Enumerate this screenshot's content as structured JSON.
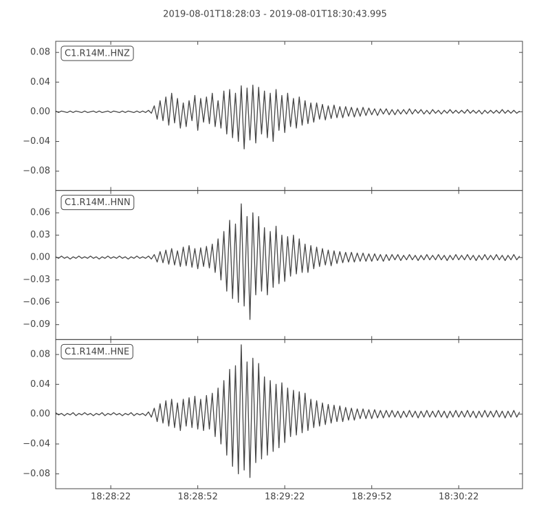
{
  "title": "2019-08-01T18:28:03  -  2019-08-01T18:30:43.995",
  "chart_data": {
    "type": "line",
    "x": [
      0,
      1,
      2,
      3,
      4,
      5,
      6,
      7,
      8,
      9,
      10,
      11,
      12,
      13,
      14,
      15,
      16,
      17,
      18,
      19,
      20,
      21,
      22,
      23,
      24,
      25,
      26,
      27,
      28,
      29,
      30,
      31,
      32,
      33,
      34,
      35,
      36,
      37,
      38,
      39,
      40,
      41,
      42,
      43,
      44,
      45,
      46,
      47,
      48,
      49,
      50,
      51,
      52,
      53,
      54,
      55,
      56,
      57,
      58,
      59,
      60,
      61,
      62,
      63,
      64,
      65,
      66,
      67,
      68,
      69,
      70,
      71,
      72,
      73,
      74,
      75,
      76,
      77,
      78,
      79,
      80,
      81,
      82,
      83,
      84,
      85,
      86,
      87,
      88,
      89,
      90,
      91,
      92,
      93,
      94,
      95,
      96,
      97,
      98,
      99,
      100,
      101,
      102,
      103,
      104,
      105,
      106,
      107,
      108,
      109,
      110,
      111,
      112,
      113,
      114,
      115,
      116,
      117,
      118,
      119,
      120,
      121,
      122,
      123,
      124,
      125,
      126,
      127,
      128,
      129,
      130,
      131,
      132,
      133,
      134,
      135,
      136,
      137,
      138,
      139,
      140,
      141,
      142,
      143,
      144,
      145,
      146,
      147,
      148,
      149,
      150,
      151,
      152,
      153,
      154,
      155,
      156,
      157,
      158,
      159,
      160
    ],
    "xlim": [
      0,
      160.995
    ],
    "xticks": [
      {
        "value": 19,
        "label": "18:28:22"
      },
      {
        "value": 49,
        "label": "18:28:52"
      },
      {
        "value": 79,
        "label": "18:29:22"
      },
      {
        "value": 109,
        "label": "18:29:52"
      },
      {
        "value": 139,
        "label": "18:30:22"
      }
    ],
    "series": [
      {
        "name": "C1.R14M..HNZ",
        "color": "#444444",
        "ylim": [
          -0.106,
          0.095
        ],
        "yticks": [
          0.08,
          0.04,
          {
            "value": 0,
            "label": "0.00"
          },
          {
            "value": -0.04,
            "label": "−0.04"
          },
          {
            "value": -0.08,
            "label": "−0.08"
          }
        ],
        "values": [
          0.001,
          -0.001,
          0.001,
          0,
          -0.001,
          0.001,
          -0.001,
          0.001,
          0,
          -0.001,
          0.001,
          -0.001,
          0,
          0.001,
          -0.001,
          0.001,
          -0.001,
          0,
          0.001,
          -0.001,
          0.001,
          0,
          -0.001,
          0.001,
          -0.001,
          0.001,
          0,
          -0.001,
          0.001,
          -0.001,
          0.001,
          -0.001,
          0.002,
          -0.002,
          0.008,
          -0.01,
          0.015,
          -0.012,
          0.02,
          -0.018,
          0.025,
          -0.015,
          0.018,
          -0.022,
          0.012,
          -0.02,
          0.015,
          -0.012,
          0.022,
          -0.025,
          0.018,
          -0.014,
          0.02,
          -0.016,
          0.025,
          -0.02,
          0.015,
          -0.022,
          0.028,
          -0.03,
          0.03,
          -0.035,
          0.025,
          -0.04,
          0.035,
          -0.05,
          0.032,
          -0.038,
          0.036,
          -0.042,
          0.033,
          -0.03,
          0.028,
          -0.035,
          0.025,
          -0.04,
          0.03,
          -0.025,
          0.022,
          -0.028,
          0.025,
          -0.02,
          0.018,
          -0.022,
          0.02,
          -0.018,
          0.015,
          -0.016,
          0.012,
          -0.014,
          0.012,
          -0.01,
          0.01,
          -0.011,
          0.008,
          -0.009,
          0.009,
          -0.008,
          0.007,
          -0.008,
          0.007,
          -0.006,
          0.006,
          -0.007,
          0.005,
          -0.006,
          0.006,
          -0.005,
          0.005,
          -0.004,
          0.004,
          -0.005,
          0.004,
          -0.003,
          0.004,
          -0.004,
          0.003,
          -0.004,
          0.003,
          -0.003,
          0.003,
          -0.003,
          0.004,
          -0.003,
          0.003,
          -0.002,
          0.003,
          -0.003,
          0.002,
          -0.003,
          0.003,
          -0.002,
          0.002,
          -0.003,
          0.002,
          -0.002,
          0.003,
          -0.002,
          0.002,
          -0.002,
          0.002,
          -0.002,
          0.003,
          -0.002,
          0.002,
          -0.002,
          0.002,
          -0.003,
          0.002,
          -0.002,
          0.002,
          -0.002,
          0.002,
          -0.002,
          0.003,
          -0.002,
          0.002,
          -0.002,
          0.002,
          -0.002,
          0.001
        ]
      },
      {
        "name": "C1.R14M..HNN",
        "color": "#444444",
        "ylim": [
          -0.11,
          0.09
        ],
        "yticks": [
          0.06,
          0.03,
          {
            "value": 0,
            "label": "0.00"
          },
          {
            "value": -0.03,
            "label": "−0.03"
          },
          {
            "value": -0.06,
            "label": "−0.06"
          },
          {
            "value": -0.09,
            "label": "−0.09"
          }
        ],
        "values": [
          0.001,
          -0.001,
          0.002,
          -0.001,
          0.001,
          -0.002,
          0.001,
          -0.001,
          0.002,
          -0.001,
          0.001,
          -0.001,
          0.002,
          -0.001,
          0.001,
          -0.002,
          0.001,
          -0.001,
          0.002,
          -0.001,
          0.001,
          -0.001,
          0.002,
          -0.001,
          0.001,
          -0.002,
          0.001,
          -0.001,
          0.002,
          -0.001,
          0.001,
          -0.001,
          0.002,
          -0.002,
          0.004,
          -0.006,
          0.008,
          -0.007,
          0.01,
          -0.009,
          0.012,
          -0.01,
          0.009,
          -0.012,
          0.014,
          -0.011,
          0.016,
          -0.013,
          0.012,
          -0.015,
          0.013,
          -0.012,
          0.015,
          -0.014,
          0.018,
          -0.02,
          0.025,
          -0.03,
          0.035,
          -0.045,
          0.05,
          -0.055,
          0.045,
          -0.06,
          0.072,
          -0.065,
          0.055,
          -0.083,
          0.06,
          -0.05,
          0.055,
          -0.045,
          0.04,
          -0.05,
          0.035,
          -0.04,
          0.042,
          -0.035,
          0.03,
          -0.032,
          0.028,
          -0.025,
          0.03,
          -0.022,
          0.025,
          -0.02,
          0.018,
          -0.02,
          0.016,
          -0.015,
          0.014,
          -0.012,
          0.012,
          -0.01,
          0.01,
          -0.011,
          0.009,
          -0.008,
          0.008,
          -0.007,
          0.007,
          -0.006,
          0.007,
          -0.006,
          0.006,
          -0.005,
          0.006,
          -0.005,
          0.005,
          -0.005,
          0.005,
          -0.004,
          0.004,
          -0.005,
          0.004,
          -0.004,
          0.004,
          -0.003,
          0.004,
          -0.004,
          0.003,
          -0.003,
          0.004,
          -0.003,
          0.003,
          -0.004,
          0.003,
          -0.003,
          0.004,
          -0.003,
          0.003,
          -0.003,
          0.004,
          -0.003,
          0.003,
          -0.004,
          0.003,
          -0.003,
          0.004,
          -0.003,
          0.003,
          -0.003,
          0.004,
          -0.003,
          0.003,
          -0.004,
          0.003,
          -0.003,
          0.004,
          -0.003,
          0.003,
          -0.003,
          0.004,
          -0.003,
          0.003,
          -0.004,
          0.003,
          -0.003,
          0.004,
          -0.003,
          0.002
        ]
      },
      {
        "name": "C1.R14M..HNE",
        "color": "#444444",
        "ylim": [
          -0.1,
          0.1
        ],
        "yticks": [
          0.08,
          0.04,
          {
            "value": 0,
            "label": "0.00"
          },
          {
            "value": -0.04,
            "label": "−0.04"
          },
          {
            "value": -0.08,
            "label": "−0.08"
          }
        ],
        "values": [
          0.002,
          -0.001,
          0.001,
          -0.002,
          0.001,
          -0.001,
          0.002,
          -0.002,
          0.001,
          -0.001,
          0.002,
          -0.001,
          0.001,
          -0.002,
          0.001,
          -0.001,
          0.002,
          -0.002,
          0.001,
          -0.001,
          0.002,
          -0.001,
          0.001,
          -0.002,
          0.001,
          -0.001,
          0.002,
          -0.002,
          0.001,
          -0.001,
          0.001,
          -0.002,
          0.003,
          -0.004,
          0.008,
          -0.01,
          0.014,
          -0.012,
          0.018,
          -0.016,
          0.02,
          -0.018,
          0.015,
          -0.022,
          0.02,
          -0.016,
          0.022,
          -0.018,
          0.024,
          -0.02,
          0.02,
          -0.022,
          0.025,
          -0.02,
          0.028,
          -0.03,
          0.035,
          -0.04,
          0.045,
          -0.055,
          0.06,
          -0.07,
          0.065,
          -0.08,
          0.093,
          -0.075,
          0.07,
          -0.085,
          0.075,
          -0.065,
          0.068,
          -0.06,
          0.05,
          -0.055,
          0.045,
          -0.05,
          0.04,
          -0.045,
          0.042,
          -0.038,
          0.035,
          -0.03,
          0.032,
          -0.028,
          0.03,
          -0.025,
          0.028,
          -0.022,
          0.02,
          -0.018,
          0.018,
          -0.016,
          0.015,
          -0.014,
          0.013,
          -0.012,
          0.012,
          -0.01,
          0.011,
          -0.01,
          0.009,
          -0.008,
          0.008,
          -0.008,
          0.007,
          -0.006,
          0.007,
          -0.006,
          0.006,
          -0.006,
          0.006,
          -0.005,
          0.005,
          -0.005,
          0.005,
          -0.004,
          0.005,
          -0.004,
          0.004,
          -0.005,
          0.004,
          -0.004,
          0.005,
          -0.004,
          0.004,
          -0.005,
          0.004,
          -0.004,
          0.005,
          -0.004,
          0.004,
          -0.004,
          0.005,
          -0.004,
          0.004,
          -0.005,
          0.004,
          -0.004,
          0.005,
          -0.004,
          0.004,
          -0.004,
          0.005,
          -0.004,
          0.004,
          -0.005,
          0.004,
          -0.004,
          0.005,
          -0.004,
          0.004,
          -0.004,
          0.005,
          -0.004,
          0.004,
          -0.005,
          0.004,
          -0.004,
          0.005,
          -0.004,
          0.003
        ]
      }
    ]
  }
}
